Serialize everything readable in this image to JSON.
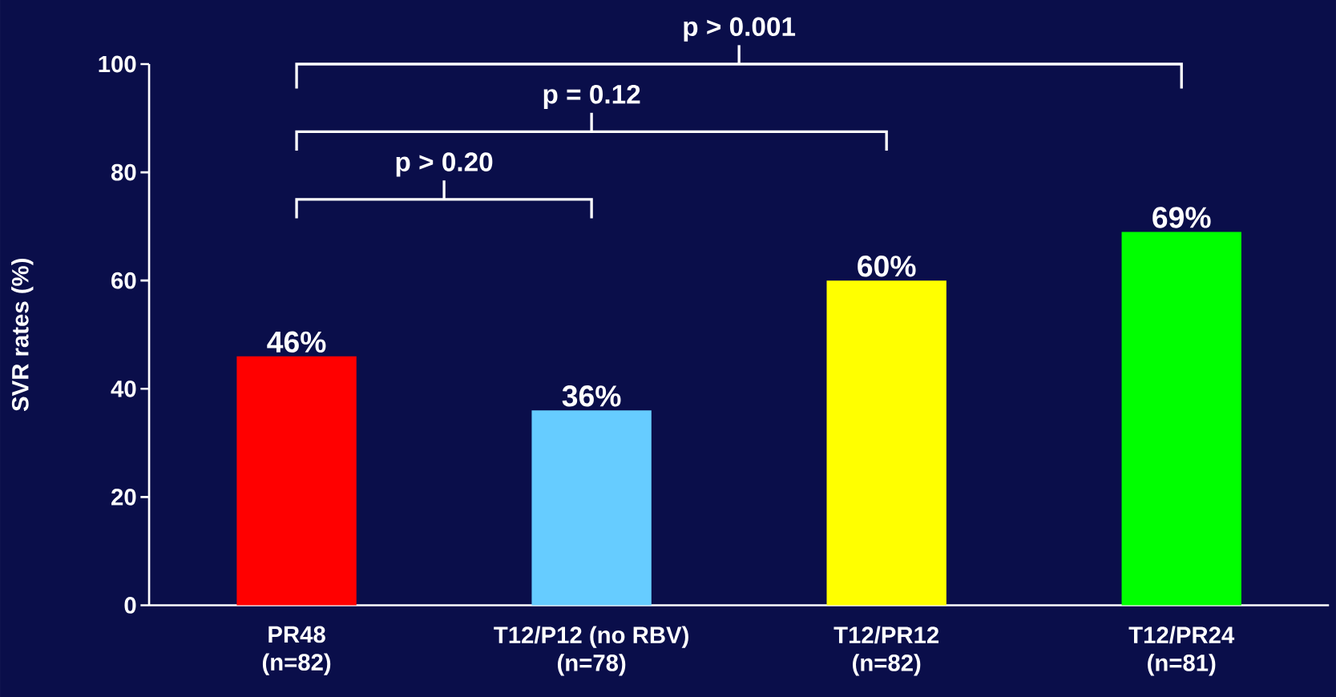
{
  "chart_data": {
    "type": "bar",
    "ylabel": "SVR rates (%)",
    "categories": [
      "PR48 (n=82)",
      "T12/P12 (no RBV) (n=78)",
      "T12/PR12 (n=82)",
      "T12/PR24 (n=81)"
    ],
    "values": [
      46,
      36,
      60,
      69
    ],
    "colors": [
      "#ff0000",
      "#66ccff",
      "#ffff00",
      "#00ff00"
    ],
    "value_labels": [
      "46%",
      "36%",
      "60%",
      "69%"
    ],
    "ylim": [
      0,
      100
    ],
    "yticks": [
      0,
      20,
      40,
      60,
      80,
      100
    ],
    "annotations": [
      "p > 0.001",
      "p = 0.12",
      "p > 0.20"
    ],
    "grid": false
  }
}
